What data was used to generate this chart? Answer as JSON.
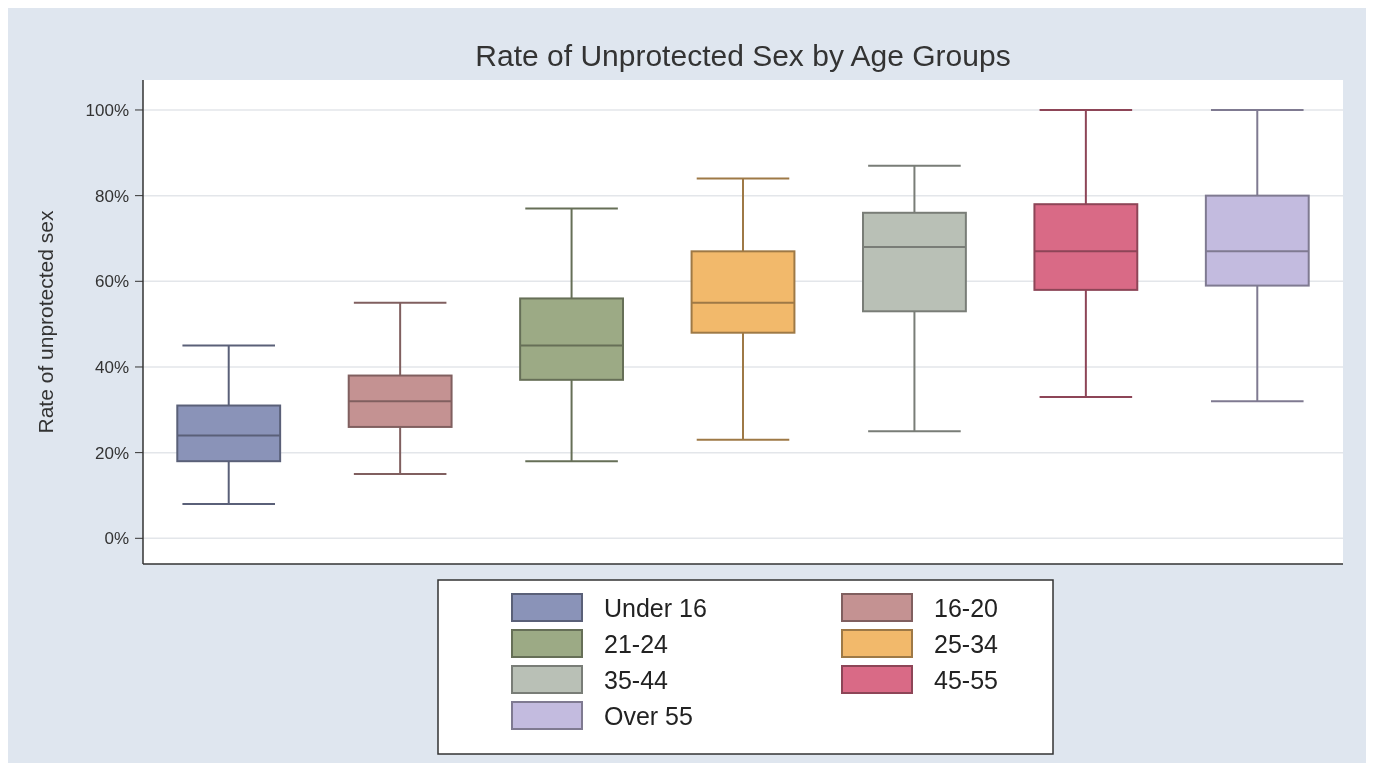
{
  "chart_data": {
    "type": "box",
    "title": "Rate of Unprotected Sex by Age Groups",
    "ylabel": "Rate of unprotected sex",
    "categories": [
      null
    ],
    "series": [
      {
        "name": "Under 16",
        "color": "#8a93b8",
        "boxes": [
          {
            "low": 8,
            "q1": 18,
            "median": 24,
            "q3": 31,
            "high": 45
          }
        ]
      },
      {
        "name": "16-20",
        "color": "#c49292",
        "boxes": [
          {
            "low": 15,
            "q1": 26,
            "median": 32,
            "q3": 38,
            "high": 55
          }
        ]
      },
      {
        "name": "21-24",
        "color": "#9caa85",
        "boxes": [
          {
            "low": 18,
            "q1": 37,
            "median": 45,
            "q3": 56,
            "high": 77
          }
        ]
      },
      {
        "name": "25-34",
        "color": "#f2b96b",
        "boxes": [
          {
            "low": 23,
            "q1": 48,
            "median": 55,
            "q3": 67,
            "high": 84
          }
        ]
      },
      {
        "name": "35-44",
        "color": "#b9c0b6",
        "boxes": [
          {
            "low": 25,
            "q1": 53,
            "median": 68,
            "q3": 76,
            "high": 87
          }
        ]
      },
      {
        "name": "45-55",
        "color": "#d96a86",
        "boxes": [
          {
            "low": 33,
            "q1": 58,
            "median": 67,
            "q3": 78,
            "high": 100
          }
        ]
      },
      {
        "name": "Over 55",
        "color": "#c3bbdf",
        "boxes": [
          {
            "low": 32,
            "q1": 59,
            "median": 67,
            "q3": 80,
            "high": 100
          }
        ]
      }
    ],
    "ylim": [
      -6,
      107
    ],
    "yticks": [
      {
        "value": 0,
        "label": "0%"
      },
      {
        "value": 20,
        "label": "20%"
      },
      {
        "value": 40,
        "label": "40%"
      },
      {
        "value": 60,
        "label": "60%"
      },
      {
        "value": 80,
        "label": "80%"
      },
      {
        "value": 100,
        "label": "100%"
      }
    ],
    "grid": "y",
    "legend": "bottom"
  }
}
